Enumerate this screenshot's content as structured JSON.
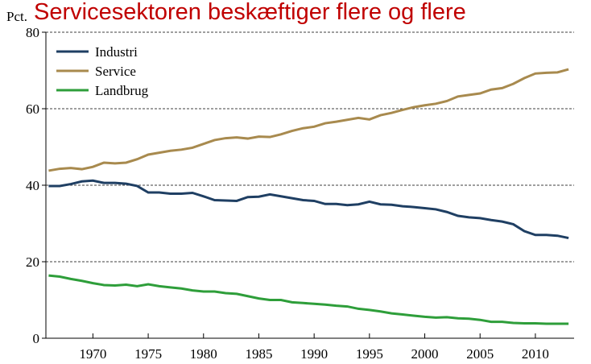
{
  "chart_data": {
    "type": "line",
    "title": "Servicesektoren beskæftiger flere og flere",
    "ylabel": "Pct.",
    "x": [
      1966,
      1967,
      1968,
      1969,
      1970,
      1971,
      1972,
      1973,
      1974,
      1975,
      1976,
      1977,
      1978,
      1979,
      1980,
      1981,
      1982,
      1983,
      1984,
      1985,
      1986,
      1987,
      1988,
      1989,
      1990,
      1991,
      1992,
      1993,
      1994,
      1995,
      1996,
      1997,
      1998,
      1999,
      2000,
      2001,
      2002,
      2003,
      2004,
      2005,
      2006,
      2007,
      2008,
      2009,
      2010,
      2011,
      2012,
      2013
    ],
    "series": [
      {
        "name": "Industri",
        "color": "#1f3f63",
        "values": [
          39.8,
          39.8,
          40.3,
          41.0,
          41.2,
          40.6,
          40.6,
          40.4,
          39.8,
          38.1,
          38.1,
          37.8,
          37.8,
          38.0,
          37.1,
          36.1,
          36.0,
          35.9,
          36.9,
          37.0,
          37.6,
          37.1,
          36.6,
          36.1,
          35.9,
          35.1,
          35.1,
          34.8,
          35.0,
          35.7,
          35.0,
          34.9,
          34.5,
          34.3,
          34.0,
          33.7,
          33.0,
          32.0,
          31.6,
          31.4,
          30.9,
          30.5,
          29.8,
          28.0,
          27.0,
          27.0,
          26.8,
          26.2
        ]
      },
      {
        "name": "Service",
        "color": "#a88a4e",
        "values": [
          43.8,
          44.3,
          44.5,
          44.2,
          44.8,
          45.9,
          45.7,
          45.9,
          46.8,
          48.0,
          48.5,
          49.0,
          49.3,
          49.8,
          50.8,
          51.8,
          52.3,
          52.5,
          52.2,
          52.7,
          52.6,
          53.3,
          54.2,
          54.9,
          55.3,
          56.2,
          56.6,
          57.1,
          57.6,
          57.2,
          58.3,
          58.9,
          59.7,
          60.4,
          60.9,
          61.3,
          62.0,
          63.2,
          63.6,
          64.0,
          65.0,
          65.4,
          66.5,
          68.0,
          69.2,
          69.4,
          69.5,
          70.3
        ]
      },
      {
        "name": "Landbrug",
        "color": "#2e9e3a",
        "values": [
          16.4,
          16.1,
          15.5,
          15.0,
          14.4,
          13.9,
          13.8,
          14.0,
          13.6,
          14.1,
          13.6,
          13.3,
          13.0,
          12.5,
          12.2,
          12.2,
          11.8,
          11.6,
          11.0,
          10.4,
          10.0,
          10.0,
          9.4,
          9.2,
          9.0,
          8.8,
          8.5,
          8.3,
          7.7,
          7.4,
          7.0,
          6.5,
          6.2,
          5.9,
          5.6,
          5.4,
          5.5,
          5.2,
          5.1,
          4.8,
          4.3,
          4.3,
          4.0,
          3.9,
          3.9,
          3.8,
          3.8,
          3.8
        ]
      }
    ],
    "xlim": [
      1965.75,
      2013.5
    ],
    "xticks": [
      1970,
      1975,
      1980,
      1985,
      1990,
      1995,
      2000,
      2005,
      2010
    ],
    "ylim": [
      0,
      80
    ],
    "yticks": [
      0,
      20,
      40,
      60,
      80
    ],
    "grid": true,
    "legend": "upper left"
  }
}
